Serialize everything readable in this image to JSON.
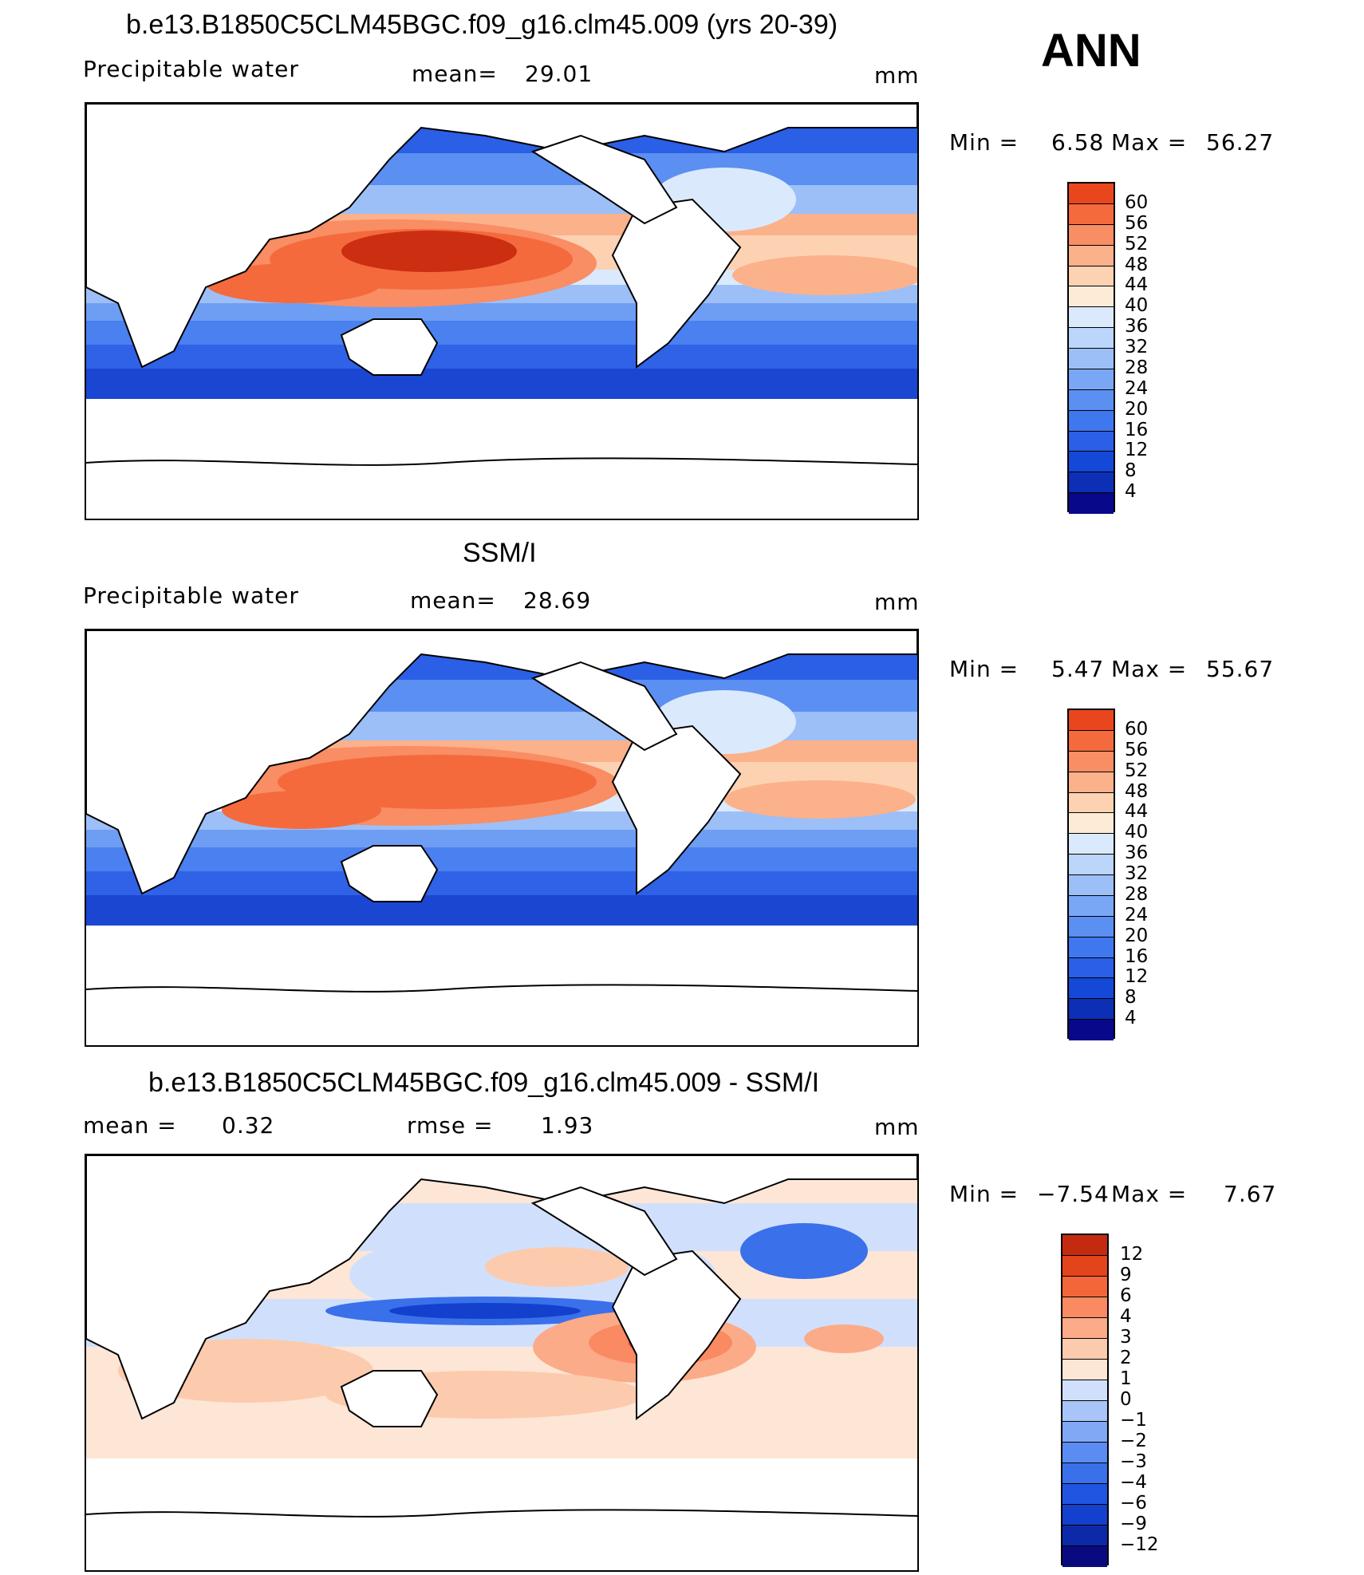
{
  "season": "ANN",
  "colors": {
    "abs_scale": [
      "#08088a",
      "#0c2fb6",
      "#1448d6",
      "#2a5fe6",
      "#3f77ee",
      "#5b8ff2",
      "#7aa7f5",
      "#9cbff8",
      "#bcd5fb",
      "#dbe9fd",
      "#fdebd8",
      "#fcd2b2",
      "#fbb18a",
      "#f98d63",
      "#f46a3d",
      "#e9461e",
      "#cc2e12",
      "#a5170a",
      "#7a0a04"
    ],
    "diff_scale": [
      "#0a0a80",
      "#0c2aa8",
      "#1340cc",
      "#1f55e0",
      "#3a70ea",
      "#5b8cf1",
      "#80a8f5",
      "#a8c4f8",
      "#d0e0fc",
      "#fde6d6",
      "#fccbad",
      "#fbab88",
      "#f98a62",
      "#f2663a",
      "#e3441c",
      "#c42a10",
      "#8f0f05"
    ]
  },
  "panels": [
    {
      "title": "b.e13.B1850C5CLM45BGC.f09_g16.clm45.009 (yrs 20-39)",
      "variable": "Precipitable water",
      "stat1_label": "mean=",
      "stat1_value": "29.01",
      "units": "mm",
      "min_label": "Min =",
      "min_value": "6.58",
      "max_label": "Max =",
      "max_value": "56.27",
      "ticks": [
        "60",
        "56",
        "52",
        "48",
        "44",
        "40",
        "36",
        "32",
        "28",
        "24",
        "20",
        "16",
        "12",
        "8",
        "4"
      ]
    },
    {
      "title": "SSM/I",
      "variable": "Precipitable water",
      "stat1_label": "mean=",
      "stat1_value": "28.69",
      "units": "mm",
      "min_label": "Min =",
      "min_value": "5.47",
      "max_label": "Max =",
      "max_value": "55.67",
      "ticks": [
        "60",
        "56",
        "52",
        "48",
        "44",
        "40",
        "36",
        "32",
        "28",
        "24",
        "20",
        "16",
        "12",
        "8",
        "4"
      ]
    },
    {
      "title": "b.e13.B1850C5CLM45BGC.f09_g16.clm45.009 - SSM/I",
      "stat1_label": "mean =",
      "stat1_value": "0.32",
      "stat2_label": "rmse =",
      "stat2_value": "1.93",
      "units": "mm",
      "min_label": "Min =",
      "min_value": "−7.54",
      "max_label": "Max =",
      "max_value": "7.67",
      "ticks": [
        "12",
        "9",
        "6",
        "4",
        "3",
        "2",
        "1",
        "0",
        "−1",
        "−2",
        "−3",
        "−4",
        "−6",
        "−9",
        "−12"
      ]
    }
  ]
}
